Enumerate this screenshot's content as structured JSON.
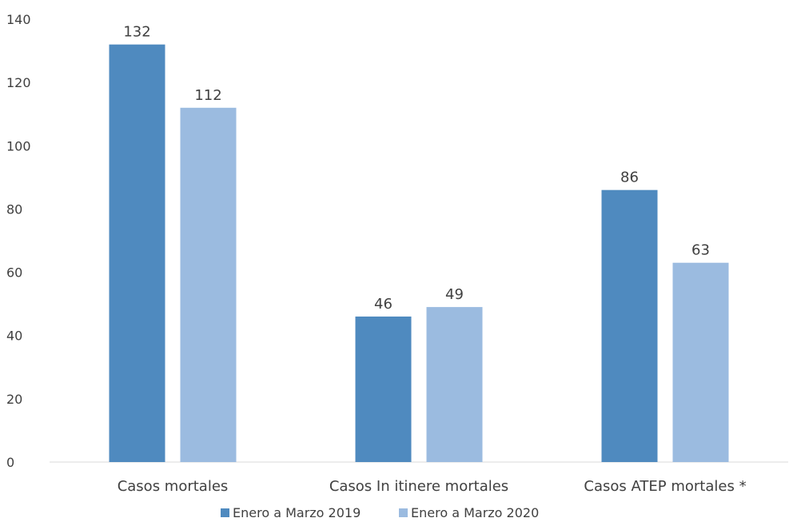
{
  "chart_data": {
    "type": "bar",
    "title": "",
    "xlabel": "",
    "ylabel": "",
    "categories": [
      "Casos mortales",
      "Casos In itinere mortales",
      "Casos ATEP mortales *"
    ],
    "series": [
      {
        "name": "Enero a Marzo 2019",
        "values": [
          132,
          46,
          86
        ],
        "color": "#4f8abf"
      },
      {
        "name": "Enero a Marzo 2020",
        "values": [
          112,
          49,
          63
        ],
        "color": "#9bbbe0"
      }
    ],
    "ylim": [
      0,
      140
    ],
    "yticks": [
      0,
      20,
      40,
      60,
      80,
      100,
      120,
      140
    ],
    "grid": false,
    "legend_position": "bottom",
    "data_labels": true
  }
}
